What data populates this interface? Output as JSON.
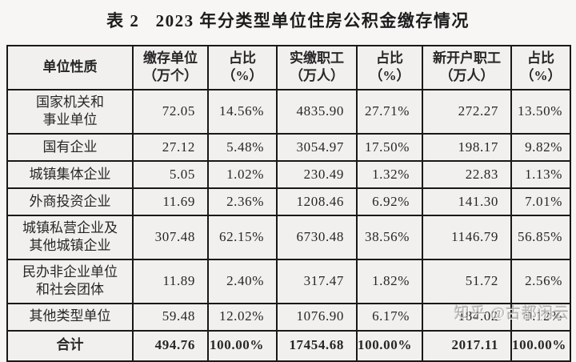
{
  "title": "表 2   2023 年分类型单位住房公积金缴存情况",
  "watermark": "知乎 @古都闲云",
  "colors": {
    "border": "#191919",
    "cell_bg": "#f1f0ee",
    "page_bg": "#f7f6f4",
    "text": "#262626",
    "watermark_gray": "#969490"
  },
  "table": {
    "columns": [
      {
        "label": "单位性质"
      },
      {
        "label": "缴存单位\n（万个）"
      },
      {
        "label": "占比\n（%）"
      },
      {
        "label": "实缴职工\n（万人）"
      },
      {
        "label": "占比\n（%）"
      },
      {
        "label": "新开户职工\n（万人）"
      },
      {
        "label": "占比\n（%）"
      }
    ],
    "rows": [
      [
        "国家机关和\n事业单位",
        "72.05",
        "14.56%",
        "4835.90",
        "27.71%",
        "272.27",
        "13.50%"
      ],
      [
        "国有企业",
        "27.12",
        "5.48%",
        "3054.97",
        "17.50%",
        "198.17",
        "9.82%"
      ],
      [
        "城镇集体企业",
        "5.05",
        "1.02%",
        "230.49",
        "1.32%",
        "22.83",
        "1.13%"
      ],
      [
        "外商投资企业",
        "11.69",
        "2.36%",
        "1208.46",
        "6.92%",
        "141.30",
        "7.01%"
      ],
      [
        "城镇私营企业及\n其他城镇企业",
        "307.48",
        "62.15%",
        "6730.48",
        "38.56%",
        "1146.79",
        "56.85%"
      ],
      [
        "民办非企业单位\n和社会团体",
        "11.89",
        "2.40%",
        "317.47",
        "1.82%",
        "51.72",
        "2.56%"
      ],
      [
        "其他类型单位",
        "59.48",
        "12.02%",
        "1076.90",
        "6.17%",
        "184.02",
        "9.12%"
      ]
    ],
    "total_row": [
      "合计",
      "494.76",
      "100.00%",
      "17454.68",
      "100.00%",
      "2017.11",
      "100.00%"
    ]
  }
}
